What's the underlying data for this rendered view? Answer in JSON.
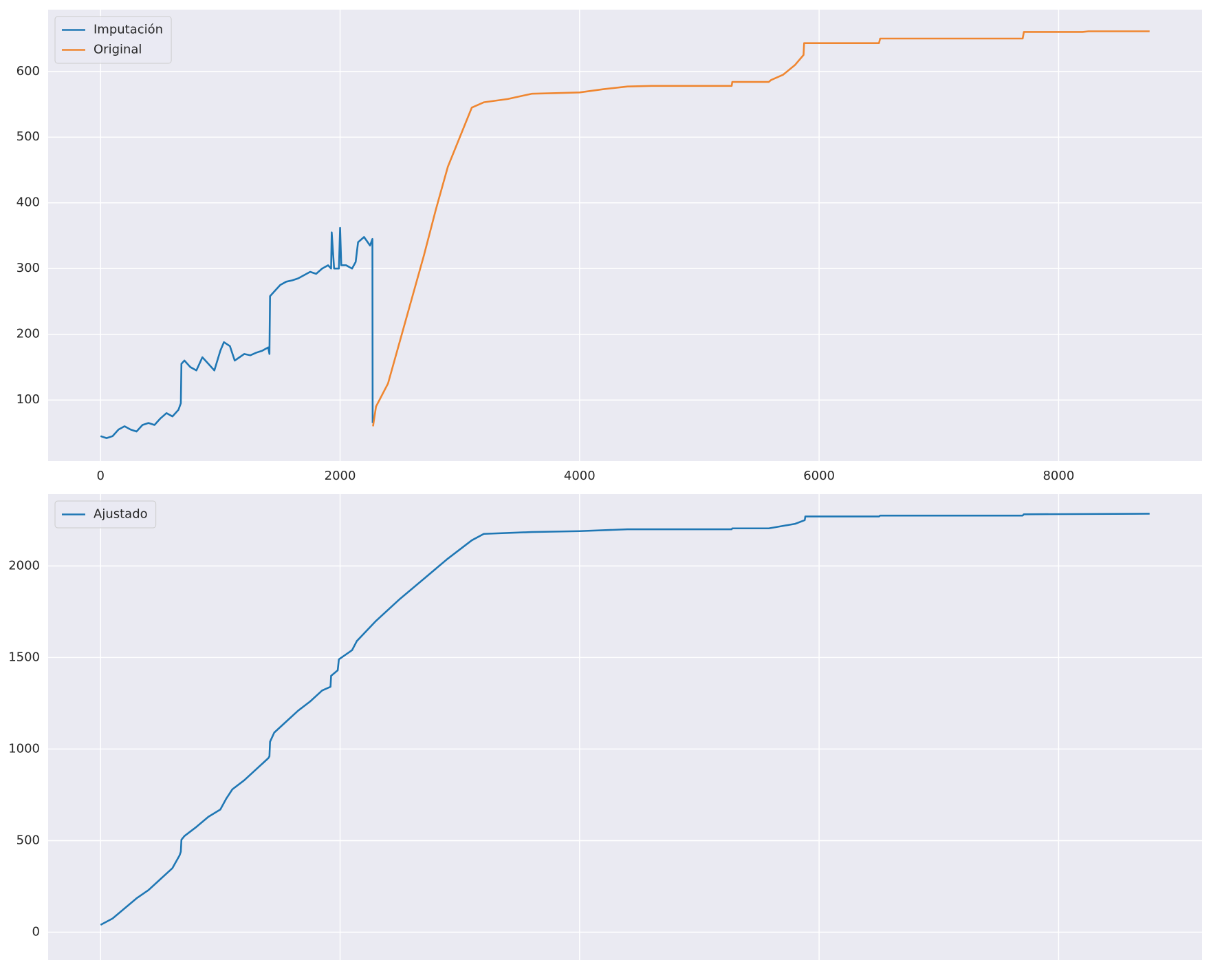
{
  "chart_data": [
    {
      "type": "line",
      "xlim": [
        -438,
        9198
      ],
      "ylim": [
        7,
        694
      ],
      "xticks": [
        0,
        2000,
        4000,
        6000,
        8000
      ],
      "yticks": [
        100,
        200,
        300,
        400,
        500,
        600
      ],
      "grid": true,
      "legend": "upper left",
      "series": [
        {
          "name": "Imputación",
          "color": "#1f77b4",
          "x": [
            0,
            50,
            100,
            150,
            200,
            250,
            300,
            350,
            400,
            450,
            500,
            550,
            600,
            650,
            670,
            675,
            700,
            750,
            800,
            850,
            900,
            950,
            1000,
            1030,
            1080,
            1120,
            1160,
            1200,
            1250,
            1300,
            1350,
            1400,
            1410,
            1415,
            1450,
            1500,
            1550,
            1600,
            1650,
            1700,
            1750,
            1800,
            1850,
            1900,
            1925,
            1930,
            1950,
            1990,
            2000,
            2010,
            2050,
            2100,
            2130,
            2150,
            2200,
            2250,
            2270,
            2272
          ],
          "values": [
            45,
            42,
            45,
            55,
            60,
            55,
            52,
            62,
            65,
            62,
            72,
            80,
            75,
            85,
            95,
            155,
            160,
            150,
            145,
            165,
            155,
            145,
            175,
            188,
            182,
            160,
            165,
            170,
            168,
            172,
            175,
            180,
            170,
            258,
            265,
            275,
            280,
            282,
            285,
            290,
            295,
            292,
            300,
            305,
            300,
            355,
            300,
            300,
            362,
            305,
            305,
            300,
            310,
            340,
            348,
            335,
            345,
            65
          ]
        },
        {
          "name": "Original",
          "color": "#ef8630",
          "x": [
            2275,
            2300,
            2400,
            2500,
            2600,
            2700,
            2800,
            2900,
            3000,
            3100,
            3200,
            3400,
            3600,
            3800,
            4000,
            4200,
            4400,
            4600,
            5000,
            5270,
            5275,
            5580,
            5600,
            5700,
            5800,
            5870,
            5875,
            6500,
            6510,
            7700,
            7710,
            8200,
            8250,
            8760
          ],
          "values": [
            60,
            90,
            125,
            190,
            255,
            320,
            390,
            455,
            500,
            545,
            553,
            558,
            566,
            567,
            568,
            573,
            577,
            578,
            578,
            578,
            584,
            584,
            587,
            595,
            610,
            625,
            643,
            643,
            650,
            650,
            660,
            660,
            661,
            661
          ]
        }
      ]
    },
    {
      "type": "line",
      "xlim": [
        -438,
        9198
      ],
      "ylim": [
        -152,
        2392
      ],
      "xticks": [
        0,
        2000,
        4000,
        6000,
        8000
      ],
      "yticks": [
        0,
        500,
        1000,
        1500,
        2000
      ],
      "grid": true,
      "legend": "upper left",
      "series": [
        {
          "name": "Ajustado",
          "color": "#1f77b4",
          "x": [
            0,
            100,
            200,
            300,
            400,
            500,
            600,
            660,
            670,
            675,
            700,
            800,
            900,
            1000,
            1050,
            1100,
            1200,
            1300,
            1400,
            1410,
            1415,
            1450,
            1550,
            1650,
            1750,
            1850,
            1920,
            1925,
            1980,
            1990,
            2100,
            2140,
            2300,
            2500,
            2700,
            2900,
            3100,
            3200,
            3600,
            4000,
            4400,
            5270,
            5275,
            5580,
            5800,
            5880,
            5885,
            6500,
            6510,
            7700,
            7710,
            8760
          ],
          "values": [
            40,
            75,
            130,
            185,
            230,
            290,
            350,
            420,
            440,
            505,
            525,
            575,
            630,
            670,
            730,
            780,
            830,
            890,
            950,
            960,
            1040,
            1090,
            1150,
            1210,
            1260,
            1320,
            1340,
            1400,
            1430,
            1490,
            1540,
            1590,
            1700,
            1820,
            1930,
            2040,
            2140,
            2175,
            2185,
            2190,
            2200,
            2200,
            2205,
            2205,
            2230,
            2250,
            2270,
            2270,
            2275,
            2275,
            2282,
            2285
          ]
        }
      ]
    }
  ]
}
